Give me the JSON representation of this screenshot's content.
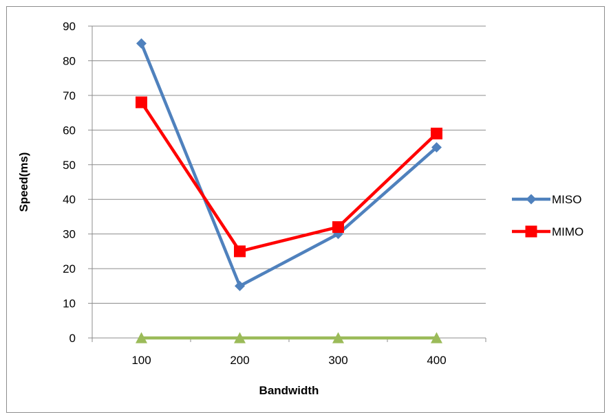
{
  "chart_data": {
    "type": "line",
    "title": "",
    "xlabel": "Bandwidth",
    "ylabel": "Speed(ms)",
    "categories": [
      "100",
      "200",
      "300",
      "400"
    ],
    "ylim": [
      0,
      90
    ],
    "yticks": [
      0,
      10,
      20,
      30,
      40,
      50,
      60,
      70,
      80,
      90
    ],
    "grid": "horizontal",
    "legend_position": "right",
    "series": [
      {
        "name": "MISO",
        "values": [
          85,
          15,
          30,
          55
        ],
        "color": "#4F81BD",
        "marker": "diamond"
      },
      {
        "name": "MIMO",
        "values": [
          68,
          25,
          32,
          59
        ],
        "color": "#FF0000",
        "marker": "square"
      },
      {
        "name": "",
        "values": [
          0,
          0,
          0,
          0
        ],
        "color": "#9BBB59",
        "marker": "triangle"
      }
    ]
  }
}
